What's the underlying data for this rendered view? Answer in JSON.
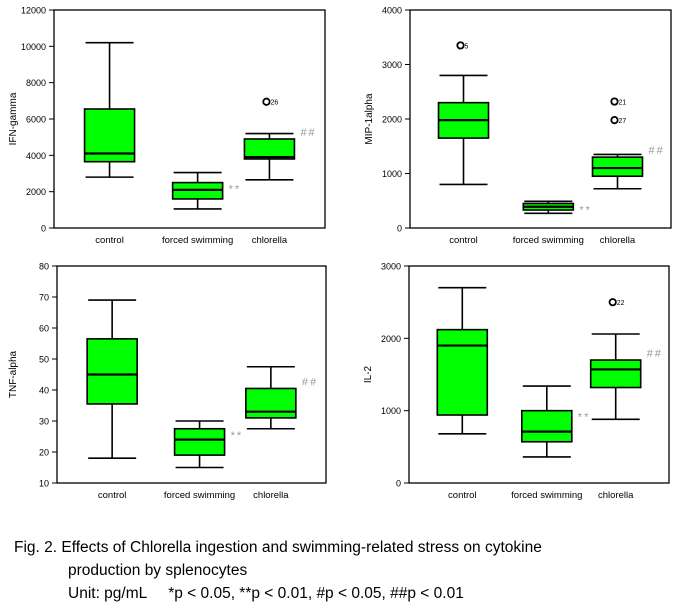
{
  "chart_data": [
    {
      "type": "box",
      "ylabel": "IFN-gamma",
      "ylim": [
        0,
        12000
      ],
      "yticks": [
        0,
        2000,
        4000,
        6000,
        8000,
        10000,
        12000
      ],
      "categories": [
        "control",
        "forced swimming",
        "chlorella"
      ],
      "boxes": [
        {
          "category": "control",
          "min": 2800,
          "q1": 3650,
          "median": 4100,
          "q3": 6550,
          "max": 10200,
          "outliers": [],
          "mark": ""
        },
        {
          "category": "forced swimming",
          "min": 1050,
          "q1": 1600,
          "median": 2100,
          "q3": 2500,
          "max": 3050,
          "outliers": [],
          "mark": "**"
        },
        {
          "category": "chlorella",
          "min": 2650,
          "q1": 3800,
          "median": 3900,
          "q3": 4900,
          "max": 5200,
          "outliers": [
            {
              "value": 6950,
              "label": "26"
            }
          ],
          "mark": "##"
        }
      ],
      "grid": false
    },
    {
      "type": "box",
      "ylabel": "MIP-1alpha",
      "ylim": [
        0,
        4000
      ],
      "yticks": [
        0,
        1000,
        2000,
        3000,
        4000
      ],
      "categories": [
        "control",
        "forced swimming",
        "chlorella"
      ],
      "boxes": [
        {
          "category": "control",
          "min": 800,
          "q1": 1650,
          "median": 1980,
          "q3": 2300,
          "max": 2800,
          "outliers": [
            {
              "value": 3350,
              "label": "5"
            }
          ],
          "mark": ""
        },
        {
          "category": "forced swimming",
          "min": 270,
          "q1": 330,
          "median": 390,
          "q3": 450,
          "max": 490,
          "outliers": [],
          "mark": "**"
        },
        {
          "category": "chlorella",
          "min": 720,
          "q1": 950,
          "median": 1100,
          "q3": 1300,
          "max": 1350,
          "outliers": [
            {
              "value": 2320,
              "label": "21"
            },
            {
              "value": 1980,
              "label": "27"
            }
          ],
          "mark": "##"
        }
      ],
      "grid": false
    },
    {
      "type": "box",
      "ylabel": "TNF-alpha",
      "ylim": [
        10,
        80
      ],
      "yticks": [
        10,
        20,
        30,
        40,
        50,
        60,
        70,
        80
      ],
      "categories": [
        "control",
        "forced swimming",
        "chlorella"
      ],
      "boxes": [
        {
          "category": "control",
          "min": 18,
          "q1": 35.5,
          "median": 45,
          "q3": 56.5,
          "max": 69,
          "outliers": [],
          "mark": ""
        },
        {
          "category": "forced swimming",
          "min": 15,
          "q1": 19,
          "median": 24,
          "q3": 27.5,
          "max": 30,
          "outliers": [],
          "mark": "**"
        },
        {
          "category": "chlorella",
          "min": 27.5,
          "q1": 31,
          "median": 33,
          "q3": 40.5,
          "max": 47.5,
          "outliers": [],
          "mark": "##"
        }
      ],
      "grid": false
    },
    {
      "type": "box",
      "ylabel": "IL-2",
      "ylim": [
        0,
        3000
      ],
      "yticks": [
        0,
        1000,
        2000,
        3000
      ],
      "categories": [
        "control",
        "forced swimming",
        "chlorella"
      ],
      "boxes": [
        {
          "category": "control",
          "min": 680,
          "q1": 940,
          "median": 1900,
          "q3": 2120,
          "max": 2700,
          "outliers": [],
          "mark": ""
        },
        {
          "category": "forced swimming",
          "min": 360,
          "q1": 570,
          "median": 710,
          "q3": 1000,
          "max": 1340,
          "outliers": [],
          "mark": "**"
        },
        {
          "category": "chlorella",
          "min": 880,
          "q1": 1320,
          "median": 1570,
          "q3": 1700,
          "max": 2060,
          "outliers": [
            {
              "value": 2500,
              "label": "22"
            }
          ],
          "mark": "##"
        }
      ],
      "grid": false
    }
  ],
  "caption": {
    "line1": "Fig. 2. Effects of Chlorella ingestion and swimming-related stress on cytokine",
    "line2": "production by splenocytes",
    "line3": "Unit: pg/mL     *p < 0.05, **p < 0.01, #p < 0.05, ##p < 0.01"
  },
  "colors": {
    "box_fill": "#00ff00",
    "line": "#000000",
    "mark": "#999999"
  }
}
